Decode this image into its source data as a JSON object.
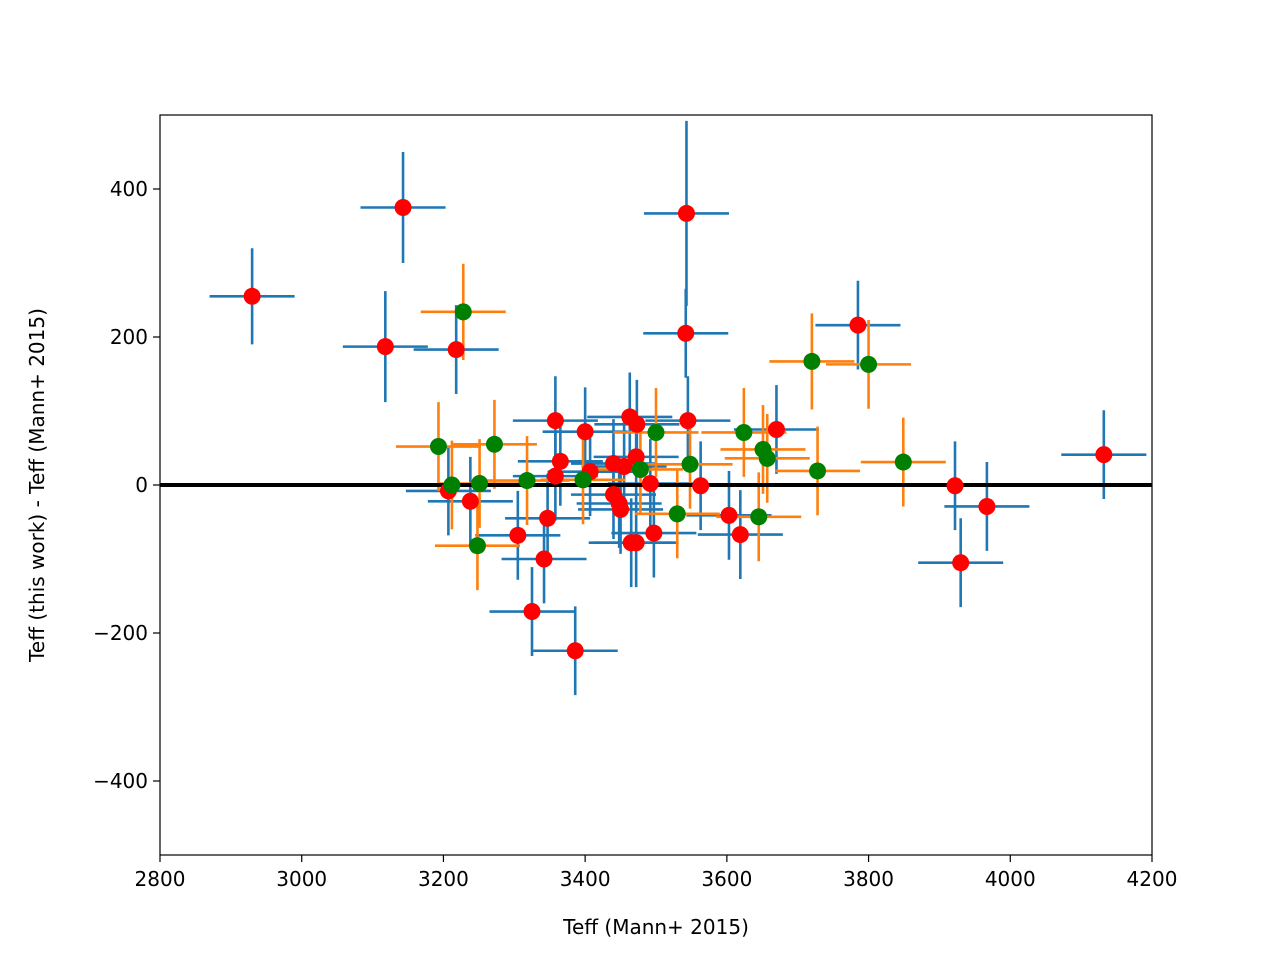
{
  "chart_data": {
    "type": "scatter",
    "title": "",
    "xlabel": "Teff (Mann+ 2015)",
    "ylabel": "Teff (this work) - Teff (Mann+ 2015)",
    "xlim": [
      2800,
      4200
    ],
    "ylim": [
      -500,
      500
    ],
    "xticks": [
      2800,
      3000,
      3200,
      3400,
      3600,
      3800,
      4000,
      4200
    ],
    "xtick_labels": [
      "2800",
      "3000",
      "3200",
      "3400",
      "3600",
      "3800",
      "4000",
      "4200"
    ],
    "yticks": [
      -400,
      -200,
      0,
      200,
      400
    ],
    "ytick_labels": [
      "−400",
      "−200",
      "0",
      "200",
      "400"
    ],
    "grid": false,
    "reference_line": {
      "y": 0,
      "color": "#000000"
    },
    "colors": {
      "errorbar_blue": "#1f77b4",
      "errorbar_orange": "#ff7f0e",
      "marker_red": "#ff0000",
      "marker_green": "#008000"
    },
    "series": [
      {
        "marker_color": "#ff0000",
        "errorbar_color": "#1f77b4",
        "points": [
          {
            "x": 2930,
            "y": 255,
            "xerr": 60,
            "yerr": 65
          },
          {
            "x": 3143,
            "y": 375,
            "xerr": 60,
            "yerr": 75
          },
          {
            "x": 3118,
            "y": 187,
            "xerr": 60,
            "yerr": 75
          },
          {
            "x": 3218,
            "y": 183,
            "xerr": 60,
            "yerr": 60
          },
          {
            "x": 3543,
            "y": 367,
            "xerr": 60,
            "yerr": 125
          },
          {
            "x": 3542,
            "y": 205,
            "xerr": 60,
            "yerr": 60
          },
          {
            "x": 3785,
            "y": 216,
            "xerr": 60,
            "yerr": 60
          },
          {
            "x": 4132,
            "y": 41,
            "xerr": 60,
            "yerr": 60
          },
          {
            "x": 3922,
            "y": -1,
            "xerr": 60,
            "yerr": 60
          },
          {
            "x": 3967,
            "y": -29,
            "xerr": 60,
            "yerr": 60
          },
          {
            "x": 3930,
            "y": -105,
            "xerr": 60,
            "yerr": 60
          },
          {
            "x": 3358,
            "y": 87,
            "xerr": 60,
            "yerr": 60
          },
          {
            "x": 3400,
            "y": 72,
            "xerr": 60,
            "yerr": 60
          },
          {
            "x": 3463,
            "y": 92,
            "xerr": 60,
            "yerr": 60
          },
          {
            "x": 3473,
            "y": 82,
            "xerr": 60,
            "yerr": 60
          },
          {
            "x": 3545,
            "y": 87,
            "xerr": 60,
            "yerr": 60
          },
          {
            "x": 3472,
            "y": 38,
            "xerr": 60,
            "yerr": 60
          },
          {
            "x": 3365,
            "y": 32,
            "xerr": 60,
            "yerr": 60
          },
          {
            "x": 3407,
            "y": 18,
            "xerr": 60,
            "yerr": 60
          },
          {
            "x": 3358,
            "y": 12,
            "xerr": 60,
            "yerr": 60
          },
          {
            "x": 3440,
            "y": 29,
            "xerr": 60,
            "yerr": 60
          },
          {
            "x": 3455,
            "y": 25,
            "xerr": 60,
            "yerr": 60
          },
          {
            "x": 3492,
            "y": 2,
            "xerr": 60,
            "yerr": 60
          },
          {
            "x": 3563,
            "y": -1,
            "xerr": 60,
            "yerr": 60
          },
          {
            "x": 3670,
            "y": 75,
            "xerr": 60,
            "yerr": 60
          },
          {
            "x": 3207,
            "y": -8,
            "xerr": 60,
            "yerr": 60
          },
          {
            "x": 3238,
            "y": -22,
            "xerr": 60,
            "yerr": 60
          },
          {
            "x": 3440,
            "y": -13,
            "xerr": 60,
            "yerr": 60
          },
          {
            "x": 3448,
            "y": -25,
            "xerr": 60,
            "yerr": 60
          },
          {
            "x": 3450,
            "y": -33,
            "xerr": 60,
            "yerr": 60
          },
          {
            "x": 3347,
            "y": -45,
            "xerr": 60,
            "yerr": 60
          },
          {
            "x": 3305,
            "y": -68,
            "xerr": 60,
            "yerr": 60
          },
          {
            "x": 3497,
            "y": -65,
            "xerr": 60,
            "yerr": 60
          },
          {
            "x": 3465,
            "y": -78,
            "xerr": 60,
            "yerr": 60
          },
          {
            "x": 3472,
            "y": -78,
            "xerr": 60,
            "yerr": 60
          },
          {
            "x": 3603,
            "y": -41,
            "xerr": 60,
            "yerr": 60
          },
          {
            "x": 3619,
            "y": -67,
            "xerr": 60,
            "yerr": 60
          },
          {
            "x": 3342,
            "y": -100,
            "xerr": 60,
            "yerr": 60
          },
          {
            "x": 3325,
            "y": -171,
            "xerr": 60,
            "yerr": 60
          },
          {
            "x": 3386,
            "y": -224,
            "xerr": 60,
            "yerr": 60
          }
        ]
      },
      {
        "marker_color": "#008000",
        "errorbar_color": "#ff7f0e",
        "points": [
          {
            "x": 3228,
            "y": 234,
            "xerr": 60,
            "yerr": 65
          },
          {
            "x": 3720,
            "y": 167,
            "xerr": 60,
            "yerr": 65
          },
          {
            "x": 3800,
            "y": 163,
            "xerr": 60,
            "yerr": 60
          },
          {
            "x": 3193,
            "y": 52,
            "xerr": 60,
            "yerr": 60
          },
          {
            "x": 3272,
            "y": 55,
            "xerr": 60,
            "yerr": 60
          },
          {
            "x": 3212,
            "y": 0,
            "xerr": 60,
            "yerr": 60
          },
          {
            "x": 3251,
            "y": 2,
            "xerr": 60,
            "yerr": 60
          },
          {
            "x": 3318,
            "y": 6,
            "xerr": 60,
            "yerr": 60
          },
          {
            "x": 3397,
            "y": 7,
            "xerr": 60,
            "yerr": 60
          },
          {
            "x": 3500,
            "y": 71,
            "xerr": 60,
            "yerr": 60
          },
          {
            "x": 3478,
            "y": 21,
            "xerr": 60,
            "yerr": 60
          },
          {
            "x": 3548,
            "y": 28,
            "xerr": 60,
            "yerr": 60
          },
          {
            "x": 3624,
            "y": 71,
            "xerr": 60,
            "yerr": 60
          },
          {
            "x": 3651,
            "y": 48,
            "xerr": 60,
            "yerr": 60
          },
          {
            "x": 3657,
            "y": 36,
            "xerr": 60,
            "yerr": 60
          },
          {
            "x": 3728,
            "y": 19,
            "xerr": 60,
            "yerr": 60
          },
          {
            "x": 3849,
            "y": 31,
            "xerr": 60,
            "yerr": 60
          },
          {
            "x": 3530,
            "y": -39,
            "xerr": 60,
            "yerr": 60
          },
          {
            "x": 3645,
            "y": -43,
            "xerr": 60,
            "yerr": 60
          },
          {
            "x": 3248,
            "y": -82,
            "xerr": 60,
            "yerr": 60
          }
        ]
      }
    ]
  }
}
